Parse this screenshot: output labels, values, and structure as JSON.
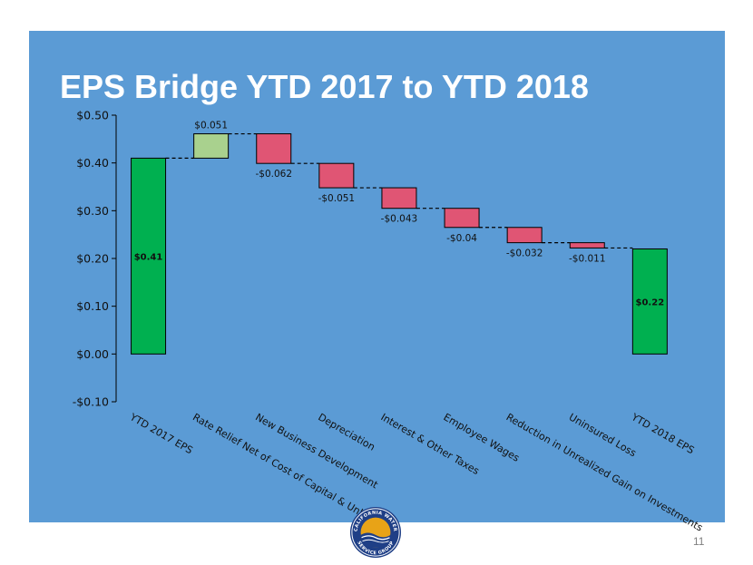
{
  "slide": {
    "title": "EPS Bridge YTD 2017 to YTD 2018",
    "page_number": "11",
    "logo_text": "CALIFORNIA WATER SERVICE GROUP"
  },
  "colors": {
    "background": "#5b9bd5",
    "total_bar": "#00b050",
    "increase_bar": "#a9d18e",
    "decrease_bar": "#e05574"
  },
  "chart_data": {
    "type": "bar",
    "subtype": "waterfall",
    "title": "EPS Bridge YTD 2017 to YTD 2018",
    "xlabel": "",
    "ylabel": "",
    "ylim": [
      -0.1,
      0.5
    ],
    "yticks": [
      -0.1,
      0.0,
      0.1,
      0.2,
      0.3,
      0.4,
      0.5
    ],
    "ytick_labels": [
      "-$0.10",
      "$0.00",
      "$0.10",
      "$0.20",
      "$0.30",
      "$0.40",
      "$0.50"
    ],
    "grid": false,
    "legend": "none",
    "connectors": true,
    "categories": [
      "YTD 2017 EPS",
      "Rate Relief Net of Cost of Capital & Unbilled",
      "New Business Development",
      "Depreciation",
      "Interest & Other Taxes",
      "Employee Wages",
      "Reduction in Unrealized Gain on Investments",
      "Uninsured Loss",
      "YTD 2018 EPS"
    ],
    "values": [
      0.41,
      0.051,
      -0.062,
      -0.051,
      -0.043,
      -0.04,
      -0.032,
      -0.011,
      0.22
    ],
    "kinds": [
      "total",
      "increase",
      "decrease",
      "decrease",
      "decrease",
      "decrease",
      "decrease",
      "decrease",
      "total"
    ],
    "labels": [
      "$0.41",
      "$0.051",
      "-$0.062",
      "-$0.051",
      "-$0.043",
      "-$0.04",
      "-$0.032",
      "-$0.011",
      "$0.22"
    ]
  }
}
